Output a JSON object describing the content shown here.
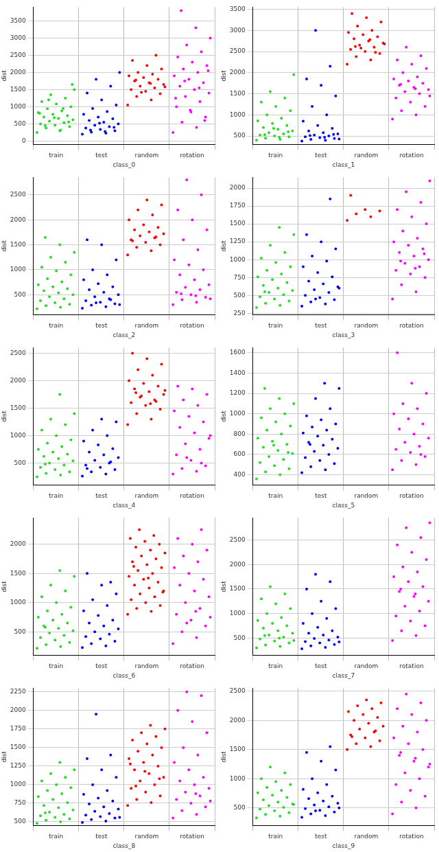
{
  "chart_data": [
    {
      "type": "scatter",
      "x_label": "class_0",
      "y_label": "dist",
      "categories": [
        "train",
        "test",
        "random",
        "rotation"
      ],
      "colors": [
        "#22dd22",
        "#0000ff",
        "#ff0000",
        "#ff00ff"
      ],
      "ylim": [
        -100,
        3900
      ],
      "yticks": [
        0,
        500,
        1000,
        1500,
        2000,
        2500,
        3000,
        3500
      ],
      "grid": true,
      "values": [
        [
          250,
          320,
          380,
          420,
          460,
          500,
          540,
          580,
          620,
          660,
          700,
          740,
          780,
          830,
          880,
          940,
          1000,
          1080,
          1150,
          1250,
          1350,
          1500,
          300,
          450,
          560,
          680,
          810,
          950,
          1200,
          1650
        ],
        [
          200,
          230,
          260,
          300,
          340,
          380,
          420,
          460,
          500,
          550,
          600,
          650,
          700,
          780,
          860,
          950,
          1050,
          1200,
          1400,
          1600,
          1800,
          2000,
          280,
          320,
          400,
          520
        ],
        [
          1050,
          1200,
          1300,
          1380,
          1450,
          1500,
          1550,
          1600,
          1650,
          1700,
          1750,
          1800,
          1850,
          1900,
          1950,
          2000,
          2100,
          2200,
          2350,
          2500,
          1420,
          1580,
          1680,
          1780
        ],
        [
          250,
          400,
          550,
          700,
          850,
          1000,
          1150,
          1300,
          1400,
          1500,
          1600,
          1700,
          1800,
          1900,
          2000,
          2100,
          2200,
          2300,
          2450,
          2600,
          2800,
          3000,
          3300,
          3800,
          600,
          900,
          1250,
          1550,
          1750,
          2050
        ]
      ]
    },
    {
      "type": "scatter",
      "x_label": "class_1",
      "y_label": "dist",
      "categories": [
        "train",
        "test",
        "random",
        "rotation"
      ],
      "colors": [
        "#22dd22",
        "#0000ff",
        "#ff0000",
        "#ff00ff"
      ],
      "ylim": [
        300,
        3550
      ],
      "yticks": [
        500,
        1000,
        1500,
        2000,
        2500,
        3000,
        3500
      ],
      "grid": true,
      "values": [
        [
          400,
          420,
          450,
          480,
          500,
          520,
          550,
          580,
          620,
          660,
          700,
          750,
          800,
          860,
          920,
          1000,
          1100,
          1200,
          1300,
          1400,
          1550,
          1950,
          470,
          530,
          600,
          680
        ],
        [
          380,
          400,
          420,
          440,
          460,
          480,
          500,
          520,
          550,
          580,
          620,
          680,
          750,
          850,
          1000,
          1200,
          1450,
          1700,
          1850,
          2150,
          3000,
          430,
          470,
          510,
          540
        ],
        [
          2200,
          2300,
          2380,
          2450,
          2500,
          2550,
          2600,
          2650,
          2700,
          2750,
          2800,
          2850,
          2900,
          2950,
          3000,
          3100,
          3200,
          3300,
          3400,
          2480,
          2580,
          2680,
          2780,
          2620
        ],
        [
          900,
          1000,
          1100,
          1200,
          1300,
          1400,
          1500,
          1550,
          1600,
          1650,
          1700,
          1750,
          1800,
          1850,
          1900,
          2000,
          2100,
          2200,
          2300,
          2400,
          2600,
          1450,
          1620,
          1720
        ]
      ]
    },
    {
      "type": "scatter",
      "x_label": "class_2",
      "y_label": "dist",
      "categories": [
        "train",
        "test",
        "random",
        "rotation"
      ],
      "colors": [
        "#22dd22",
        "#0000ff",
        "#ff0000",
        "#ff00ff"
      ],
      "ylim": [
        100,
        2850
      ],
      "yticks": [
        500,
        1000,
        1500,
        2000,
        2500
      ],
      "grid": true,
      "values": [
        [
          220,
          250,
          280,
          310,
          340,
          380,
          420,
          460,
          500,
          540,
          580,
          620,
          660,
          700,
          760,
          820,
          900,
          980,
          1050,
          1150,
          1250,
          1350,
          1500,
          1650
        ],
        [
          230,
          260,
          290,
          320,
          350,
          380,
          420,
          460,
          500,
          550,
          600,
          660,
          720,
          800,
          900,
          1000,
          1200,
          1500,
          1600,
          400,
          340,
          300
        ],
        [
          1300,
          1380,
          1450,
          1500,
          1550,
          1600,
          1640,
          1680,
          1720,
          1760,
          1800,
          1850,
          1900,
          2000,
          2100,
          2200,
          2300,
          2400,
          1580,
          1660
        ],
        [
          300,
          350,
          400,
          450,
          500,
          550,
          600,
          650,
          700,
          800,
          900,
          1000,
          1100,
          1200,
          1400,
          1600,
          1800,
          2000,
          2200,
          2500,
          2800,
          420,
          480,
          520
        ]
      ]
    },
    {
      "type": "scatter",
      "x_label": "class_3",
      "y_label": "dist",
      "categories": [
        "train",
        "test",
        "random",
        "rotation"
      ],
      "colors": [
        "#22dd22",
        "#0000ff",
        "#ff0000",
        "#ff00ff"
      ],
      "ylim": [
        230,
        2150
      ],
      "yticks": [
        250,
        500,
        750,
        1000,
        1250,
        1500,
        1750,
        2000
      ],
      "grid": true,
      "values": [
        [
          330,
          360,
          390,
          420,
          450,
          480,
          510,
          540,
          570,
          600,
          640,
          680,
          720,
          760,
          800,
          850,
          900,
          960,
          1020,
          1100,
          1200,
          1350,
          1450,
          550
        ],
        [
          350,
          380,
          410,
          440,
          470,
          500,
          540,
          580,
          620,
          660,
          700,
          760,
          820,
          900,
          980,
          1050,
          1150,
          1250,
          1350,
          1850,
          450,
          600
        ],
        [
          1550,
          1600,
          1640,
          1680,
          1700,
          1900
        ],
        [
          450,
          550,
          650,
          750,
          800,
          850,
          900,
          950,
          1000,
          1050,
          1100,
          1150,
          1200,
          1250,
          1300,
          1400,
          1500,
          1600,
          1700,
          1800,
          1950,
          2100,
          880,
          980,
          1080
        ]
      ]
    },
    {
      "type": "scatter",
      "x_label": "class_4",
      "y_label": "dist",
      "categories": [
        "train",
        "test",
        "random",
        "rotation"
      ],
      "colors": [
        "#22dd22",
        "#0000ff",
        "#ff0000",
        "#ff00ff"
      ],
      "ylim": [
        100,
        2600
      ],
      "yticks": [
        500,
        1000,
        1500,
        2000,
        2500
      ],
      "grid": true,
      "values": [
        [
          250,
          280,
          310,
          340,
          380,
          420,
          460,
          500,
          540,
          580,
          620,
          660,
          700,
          750,
          800,
          860,
          920,
          1000,
          1100,
          1200,
          1300,
          1400,
          1750,
          480
        ],
        [
          260,
          300,
          340,
          380,
          420,
          460,
          500,
          550,
          600,
          650,
          700,
          760,
          830,
          900,
          1000,
          1100,
          1250,
          1300,
          400,
          520
        ],
        [
          1200,
          1300,
          1400,
          1480,
          1550,
          1600,
          1650,
          1700,
          1750,
          1800,
          1850,
          1900,
          1950,
          2000,
          2100,
          2200,
          2300,
          2400,
          2500,
          1620,
          1720,
          1820,
          1580,
          1780
        ],
        [
          300,
          350,
          400,
          450,
          550,
          650,
          750,
          850,
          950,
          1050,
          1150,
          1250,
          1350,
          1450,
          1550,
          1650,
          1750,
          1850,
          1900,
          500,
          600,
          1000
        ]
      ]
    },
    {
      "type": "scatter",
      "x_label": "class_5",
      "y_label": "dist",
      "categories": [
        "train",
        "test",
        "random",
        "rotation"
      ],
      "colors": [
        "#22dd22",
        "#0000ff",
        "#ff0000",
        "#ff00ff"
      ],
      "ylim": [
        300,
        1650
      ],
      "yticks": [
        400,
        600,
        800,
        1000,
        1200,
        1400,
        1600
      ],
      "grid": true,
      "values": [
        [
          360,
          400,
          430,
          460,
          490,
          520,
          550,
          580,
          610,
          640,
          670,
          700,
          730,
          760,
          800,
          840,
          880,
          920,
          960,
          1000,
          1050,
          1100,
          1150,
          1250,
          620,
          690
        ],
        [
          420,
          450,
          480,
          510,
          540,
          570,
          600,
          630,
          660,
          690,
          720,
          750,
          780,
          810,
          840,
          870,
          900,
          940,
          980,
          1050,
          1150,
          1250,
          1300,
          700
        ],
        [],
        [
          450,
          500,
          540,
          580,
          620,
          650,
          680,
          720,
          760,
          800,
          850,
          900,
          950,
          1000,
          1050,
          1100,
          1200,
          1300,
          1600,
          600
        ]
      ]
    },
    {
      "type": "scatter",
      "x_label": "class_6",
      "y_label": "dist",
      "categories": [
        "train",
        "test",
        "random",
        "rotation"
      ],
      "colors": [
        "#22dd22",
        "#0000ff",
        "#ff0000",
        "#ff00ff"
      ],
      "ylim": [
        100,
        2450
      ],
      "yticks": [
        500,
        1000,
        1500,
        2000
      ],
      "grid": true,
      "values": [
        [
          220,
          250,
          280,
          320,
          360,
          400,
          440,
          480,
          520,
          560,
          600,
          650,
          700,
          750,
          800,
          860,
          920,
          1000,
          1100,
          1200,
          1300,
          1450,
          1550,
          580
        ],
        [
          230,
          260,
          300,
          340,
          380,
          420,
          460,
          500,
          550,
          600,
          650,
          700,
          780,
          860,
          950,
          1050,
          1150,
          1300,
          1500,
          1350
        ],
        [
          800,
          850,
          900,
          950,
          1000,
          1050,
          1100,
          1150,
          1200,
          1250,
          1300,
          1350,
          1400,
          1450,
          1500,
          1550,
          1600,
          1650,
          1700,
          1750,
          1800,
          1850,
          1900,
          1950,
          2000,
          2050,
          2100,
          2150,
          2250,
          1180,
          1420,
          1620
        ],
        [
          300,
          400,
          500,
          600,
          700,
          800,
          900,
          1000,
          1100,
          1200,
          1300,
          1400,
          1500,
          1600,
          1700,
          1800,
          1900,
          2000,
          2100,
          2250,
          650,
          750,
          850
        ]
      ]
    },
    {
      "type": "scatter",
      "x_label": "class_7",
      "y_label": "dist",
      "categories": [
        "train",
        "test",
        "random",
        "rotation"
      ],
      "colors": [
        "#22dd22",
        "#0000ff",
        "#ff0000",
        "#ff00ff"
      ],
      "ylim": [
        150,
        2950
      ],
      "yticks": [
        500,
        1000,
        1500,
        2000,
        2500
      ],
      "grid": true,
      "values": [
        [
          300,
          330,
          360,
          400,
          440,
          480,
          520,
          560,
          600,
          650,
          700,
          750,
          800,
          860,
          920,
          1000,
          1100,
          1200,
          1300,
          1400,
          1550,
          450,
          500,
          550
        ],
        [
          280,
          310,
          340,
          370,
          400,
          430,
          460,
          490,
          520,
          560,
          600,
          650,
          720,
          800,
          900,
          1000,
          1100,
          1250,
          1500,
          1650,
          1800,
          420
        ],
        [],
        [
          450,
          550,
          650,
          750,
          850,
          950,
          1050,
          1150,
          1250,
          1350,
          1450,
          1550,
          1650,
          1750,
          1850,
          1950,
          2100,
          2250,
          2400,
          2550,
          2750,
          2850,
          1400,
          1500
        ]
      ]
    },
    {
      "type": "scatter",
      "x_label": "class_8",
      "y_label": "dist",
      "categories": [
        "train",
        "test",
        "random",
        "rotation"
      ],
      "colors": [
        "#22dd22",
        "#0000ff",
        "#ff0000",
        "#ff00ff"
      ],
      "ylim": [
        450,
        2300
      ],
      "yticks": [
        500,
        750,
        1000,
        1250,
        1500,
        1750,
        2000,
        2250
      ],
      "grid": true,
      "values": [
        [
          480,
          500,
          520,
          540,
          560,
          580,
          600,
          630,
          660,
          690,
          720,
          760,
          800,
          840,
          880,
          920,
          960,
          1000,
          1050,
          1100,
          1150,
          1200,
          1300,
          620
        ],
        [
          490,
          510,
          530,
          550,
          570,
          590,
          610,
          640,
          670,
          700,
          740,
          780,
          820,
          870,
          920,
          1000,
          1100,
          1200,
          1350,
          1400,
          1950,
          560
        ],
        [
          720,
          760,
          800,
          850,
          900,
          950,
          1000,
          1050,
          1100,
          1150,
          1200,
          1250,
          1300,
          1350,
          1400,
          1450,
          1500,
          1550,
          1600,
          1650,
          1700,
          1750,
          1800,
          980,
          1080,
          1180,
          1280
        ],
        [
          550,
          600,
          650,
          700,
          750,
          800,
          850,
          900,
          950,
          1000,
          1050,
          1100,
          1200,
          1300,
          1400,
          1500,
          1700,
          1850,
          2000,
          2200,
          2250,
          780,
          880
        ]
      ]
    },
    {
      "type": "scatter",
      "x_label": "class_9",
      "y_label": "dist",
      "categories": [
        "train",
        "test",
        "random",
        "rotation"
      ],
      "colors": [
        "#22dd22",
        "#0000ff",
        "#ff0000",
        "#ff00ff"
      ],
      "ylim": [
        200,
        2550
      ],
      "yticks": [
        500,
        1000,
        1500,
        2000,
        2500
      ],
      "grid": true,
      "values": [
        [
          330,
          360,
          390,
          420,
          450,
          480,
          510,
          540,
          570,
          600,
          640,
          680,
          720,
          760,
          800,
          850,
          900,
          950,
          1000,
          1100,
          1200,
          560
        ],
        [
          340,
          370,
          400,
          430,
          460,
          490,
          520,
          550,
          580,
          620,
          660,
          700,
          760,
          820,
          900,
          1000,
          1150,
          1300,
          1450,
          1550,
          450,
          500
        ],
        [
          1500,
          1550,
          1600,
          1650,
          1700,
          1750,
          1800,
          1850,
          1900,
          1950,
          2000,
          2050,
          2100,
          2150,
          2200,
          2250,
          2300,
          2350,
          1720,
          1820
        ],
        [
          400,
          500,
          600,
          700,
          800,
          900,
          1000,
          1100,
          1200,
          1300,
          1400,
          1500,
          1600,
          1700,
          1800,
          1900,
          2000,
          2100,
          2200,
          2300,
          2450,
          1250,
          1350,
          1450
        ]
      ]
    }
  ]
}
